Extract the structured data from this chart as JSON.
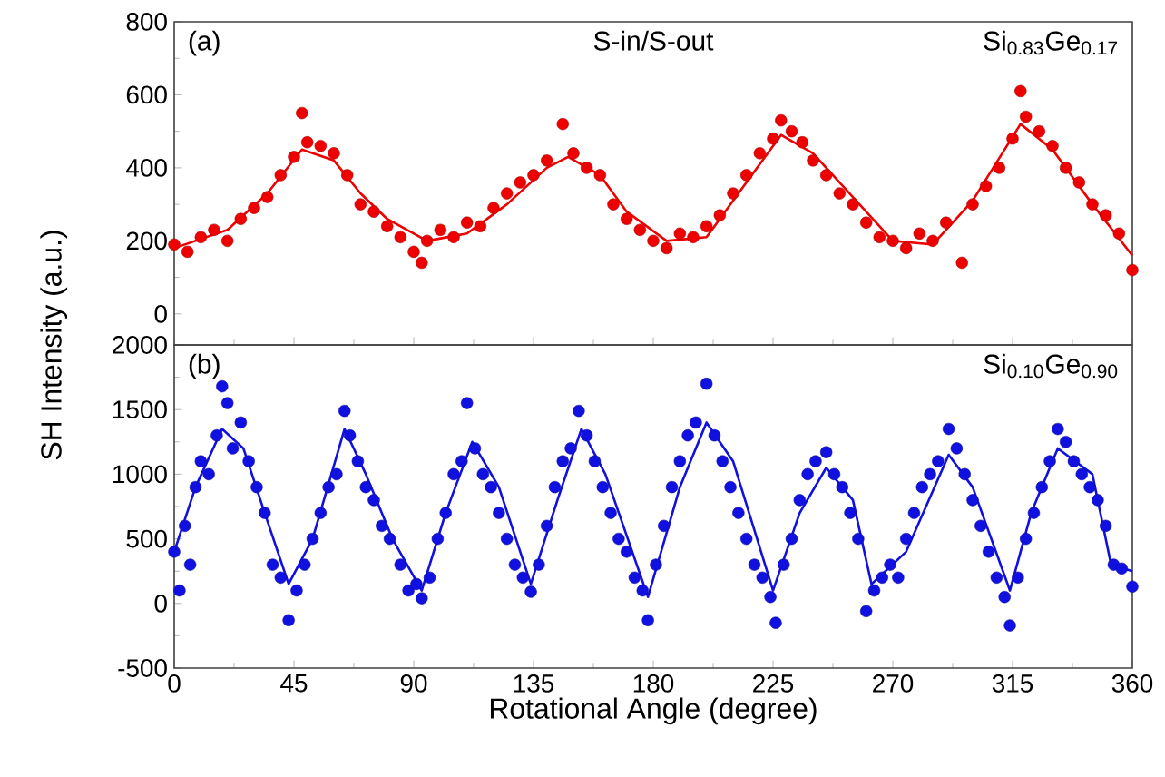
{
  "chart_data": [
    {
      "type": "scatter",
      "ylabel": "SH Intensity (a.u.)",
      "annotations": [
        "(a)",
        "S-in/S-out",
        "Si$_{0.83}$Ge$_{0.17}$"
      ],
      "xlim": [
        0,
        360
      ],
      "xticks": [
        0,
        45,
        90,
        135,
        180,
        225,
        270,
        315,
        360
      ],
      "ylim": [
        -85,
        800
      ],
      "yticks": [
        0,
        200,
        400,
        600,
        800
      ],
      "tick_labels": "y",
      "series": [
        {
          "marker": "circle",
          "color": "#ee0000",
          "x": [
            0,
            5,
            10,
            15,
            20,
            25,
            30,
            35,
            40,
            45,
            48,
            50,
            55,
            60,
            65,
            70,
            75,
            80,
            85,
            90,
            93,
            95,
            100,
            105,
            110,
            115,
            120,
            125,
            130,
            135,
            140,
            146,
            150,
            155,
            160,
            165,
            170,
            175,
            180,
            185,
            190,
            195,
            200,
            205,
            210,
            215,
            220,
            225,
            228,
            232,
            236,
            240,
            245,
            250,
            255,
            260,
            265,
            270,
            275,
            280,
            285,
            290,
            296,
            300,
            305,
            310,
            315,
            318,
            320,
            325,
            330,
            335,
            340,
            345,
            350,
            355,
            360
          ],
          "values": [
            190,
            170,
            210,
            230,
            200,
            260,
            290,
            320,
            380,
            430,
            550,
            470,
            460,
            440,
            380,
            300,
            280,
            240,
            210,
            170,
            140,
            200,
            230,
            210,
            250,
            240,
            290,
            330,
            360,
            380,
            420,
            520,
            440,
            400,
            380,
            300,
            260,
            230,
            200,
            180,
            220,
            210,
            240,
            270,
            330,
            380,
            440,
            480,
            530,
            500,
            470,
            420,
            380,
            330,
            300,
            250,
            210,
            200,
            180,
            220,
            200,
            250,
            140,
            300,
            350,
            400,
            480,
            610,
            540,
            500,
            460,
            400,
            360,
            300,
            270,
            220,
            120
          ]
        },
        {
          "type": "line",
          "color": "#ee0000",
          "x": [
            0,
            20,
            35,
            48,
            60,
            70,
            80,
            95,
            110,
            125,
            140,
            148,
            160,
            170,
            185,
            200,
            212,
            228,
            240,
            255,
            270,
            285,
            300,
            318,
            330,
            345,
            360
          ],
          "values": [
            180,
            230,
            330,
            450,
            420,
            330,
            260,
            200,
            220,
            300,
            400,
            430,
            380,
            280,
            200,
            210,
            330,
            490,
            440,
            320,
            200,
            190,
            310,
            520,
            450,
            300,
            160
          ]
        }
      ]
    },
    {
      "type": "scatter",
      "xlabel": "Rotational Angle (degree)",
      "annotations": [
        "(b)",
        "Si$_{0.10}$Ge$_{0.90}$"
      ],
      "xlim": [
        0,
        360
      ],
      "xticks": [
        0,
        45,
        90,
        135,
        180,
        225,
        270,
        315,
        360
      ],
      "ylim": [
        -500,
        2000
      ],
      "yticks": [
        -500,
        0,
        500,
        1000,
        1500,
        2000
      ],
      "series": [
        {
          "marker": "circle",
          "color": "#1010e0",
          "x": [
            0,
            2,
            4,
            6,
            8,
            10,
            13,
            16,
            18,
            20,
            22,
            25,
            28,
            31,
            34,
            37,
            40,
            43,
            46,
            49,
            52,
            55,
            58,
            61,
            64,
            66,
            69,
            72,
            75,
            78,
            81,
            85,
            88,
            91,
            93,
            96,
            99,
            102,
            105,
            108,
            110,
            113,
            116,
            119,
            122,
            125,
            128,
            131,
            134,
            137,
            140,
            143,
            146,
            149,
            152,
            155,
            158,
            161,
            164,
            167,
            170,
            173,
            176,
            178,
            181,
            184,
            187,
            190,
            193,
            196,
            200,
            203,
            206,
            209,
            212,
            215,
            218,
            221,
            224,
            226,
            229,
            232,
            235,
            238,
            241,
            245,
            248,
            251,
            254,
            257,
            260,
            263,
            266,
            269,
            272,
            275,
            278,
            281,
            284,
            287,
            291,
            294,
            297,
            300,
            303,
            306,
            309,
            312,
            314,
            317,
            320,
            323,
            326,
            329,
            332,
            335,
            338,
            341,
            344,
            347,
            350,
            353,
            356,
            360
          ],
          "values": [
            400,
            100,
            600,
            300,
            900,
            1100,
            1000,
            1300,
            1680,
            1550,
            1200,
            1400,
            1100,
            900,
            700,
            300,
            200,
            -130,
            100,
            300,
            500,
            700,
            900,
            1000,
            1490,
            1300,
            1100,
            900,
            800,
            600,
            500,
            300,
            100,
            150,
            40,
            200,
            500,
            700,
            1000,
            1100,
            1550,
            1200,
            1000,
            900,
            700,
            500,
            300,
            200,
            90,
            300,
            600,
            900,
            1100,
            1200,
            1490,
            1300,
            1100,
            900,
            700,
            500,
            400,
            200,
            100,
            -130,
            300,
            600,
            900,
            1100,
            1300,
            1400,
            1700,
            1300,
            1100,
            900,
            700,
            500,
            300,
            200,
            50,
            -150,
            300,
            500,
            800,
            1000,
            1100,
            1170,
            1000,
            900,
            700,
            500,
            -60,
            100,
            200,
            300,
            200,
            500,
            700,
            900,
            1000,
            1100,
            1350,
            1200,
            1000,
            800,
            600,
            400,
            200,
            50,
            -170,
            200,
            500,
            700,
            900,
            1100,
            1350,
            1250,
            1100,
            1000,
            900,
            800,
            600,
            300,
            270,
            130
          ]
        },
        {
          "type": "line",
          "color": "#1010e0",
          "x": [
            0,
            8,
            18,
            26,
            34,
            43,
            52,
            64,
            72,
            82,
            93,
            102,
            112,
            122,
            134,
            144,
            153,
            162,
            178,
            190,
            200,
            210,
            225,
            235,
            245,
            255,
            262,
            275,
            291,
            300,
            314,
            322,
            332,
            345,
            352,
            360
          ],
          "values": [
            400,
            900,
            1350,
            1200,
            700,
            150,
            500,
            1350,
            1000,
            500,
            100,
            700,
            1250,
            900,
            150,
            800,
            1350,
            1000,
            50,
            900,
            1400,
            1100,
            100,
            700,
            1050,
            800,
            150,
            400,
            1150,
            900,
            100,
            700,
            1200,
            1000,
            300,
            250
          ]
        }
      ]
    }
  ]
}
